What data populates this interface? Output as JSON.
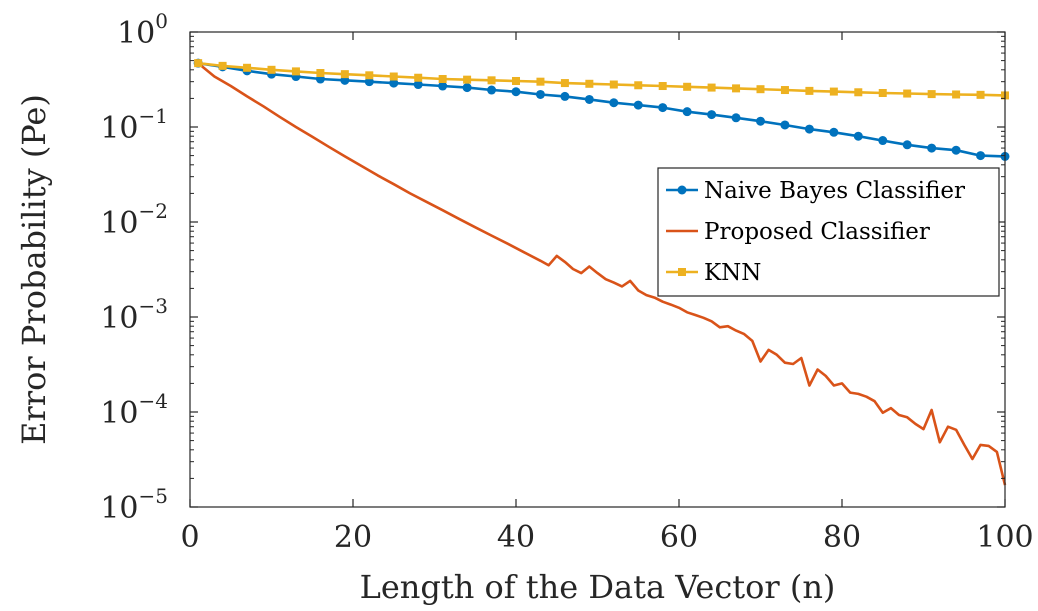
{
  "chart_data": {
    "type": "line",
    "title": "",
    "xlabel": "Length of the Data Vector (n)",
    "ylabel": "Error Probability (Pe)",
    "xlim": [
      0,
      100
    ],
    "ylim": [
      1e-05,
      1
    ],
    "yscale": "log",
    "x_ticks": [
      "0",
      "20",
      "40",
      "60",
      "80",
      "100"
    ],
    "y_ticks": [
      {
        "base": "10",
        "exp": "0"
      },
      {
        "base": "10",
        "exp": "−1"
      },
      {
        "base": "10",
        "exp": "−2"
      },
      {
        "base": "10",
        "exp": "−3"
      },
      {
        "base": "10",
        "exp": "−4"
      },
      {
        "base": "10",
        "exp": "−5"
      }
    ],
    "grid": false,
    "legend_position": "right",
    "series": [
      {
        "name": "Naive Bayes Classifier",
        "color": "#0072BD",
        "marker": "circle",
        "x": [
          1,
          4,
          7,
          10,
          13,
          16,
          19,
          22,
          25,
          28,
          31,
          34,
          37,
          40,
          43,
          46,
          49,
          52,
          55,
          58,
          61,
          64,
          67,
          70,
          73,
          76,
          79,
          82,
          85,
          88,
          91,
          94,
          97,
          100
        ],
        "values": [
          0.47,
          0.43,
          0.39,
          0.36,
          0.34,
          0.32,
          0.31,
          0.3,
          0.29,
          0.28,
          0.27,
          0.26,
          0.245,
          0.235,
          0.22,
          0.21,
          0.195,
          0.18,
          0.17,
          0.16,
          0.145,
          0.135,
          0.125,
          0.115,
          0.105,
          0.095,
          0.088,
          0.08,
          0.072,
          0.065,
          0.06,
          0.057,
          0.05,
          0.049
        ]
      },
      {
        "name": "Proposed Classifier",
        "color": "#D95319",
        "marker": "none",
        "x": [
          1,
          3,
          5,
          7,
          9,
          11,
          13,
          15,
          17,
          19,
          21,
          23,
          25,
          27,
          29,
          31,
          33,
          35,
          37,
          39,
          41,
          43,
          44,
          45,
          46,
          47,
          48,
          49,
          50,
          51,
          52,
          53,
          54,
          55,
          56,
          57,
          58,
          59,
          60,
          61,
          62,
          63,
          64,
          65,
          66,
          67,
          68,
          69,
          70,
          71,
          72,
          73,
          74,
          75,
          76,
          77,
          78,
          79,
          80,
          81,
          82,
          83,
          84,
          85,
          86,
          87,
          88,
          89,
          90,
          91,
          92,
          93,
          94,
          95,
          96,
          97,
          98,
          99,
          100
        ],
        "values": [
          0.47,
          0.34,
          0.27,
          0.21,
          0.165,
          0.128,
          0.1,
          0.079,
          0.062,
          0.049,
          0.039,
          0.031,
          0.025,
          0.02,
          0.0163,
          0.0133,
          0.0108,
          0.0088,
          0.0072,
          0.0059,
          0.0048,
          0.0039,
          0.0035,
          0.0044,
          0.0038,
          0.0032,
          0.0029,
          0.0034,
          0.0029,
          0.0025,
          0.0023,
          0.0021,
          0.0024,
          0.0019,
          0.0017,
          0.0016,
          0.00145,
          0.00135,
          0.00125,
          0.00112,
          0.00105,
          0.00098,
          0.0009,
          0.00078,
          0.0008,
          0.00072,
          0.00066,
          0.00056,
          0.00034,
          0.00045,
          0.0004,
          0.00033,
          0.00032,
          0.00037,
          0.00019,
          0.00028,
          0.00024,
          0.00019,
          0.0002,
          0.00016,
          0.000155,
          0.000145,
          0.00013,
          9.8e-05,
          0.00011,
          9.3e-05,
          8.8e-05,
          7.5e-05,
          6.6e-05,
          0.000105,
          4.8e-05,
          7e-05,
          6.5e-05,
          4.5e-05,
          3.2e-05,
          4.5e-05,
          4.4e-05,
          3.8e-05,
          1.7e-05
        ]
      },
      {
        "name": "KNN",
        "color": "#EDB120",
        "marker": "square",
        "x": [
          1,
          4,
          7,
          10,
          13,
          16,
          19,
          22,
          25,
          28,
          31,
          34,
          37,
          40,
          43,
          46,
          49,
          52,
          55,
          58,
          61,
          64,
          67,
          70,
          73,
          76,
          79,
          82,
          85,
          88,
          91,
          94,
          97,
          100
        ],
        "values": [
          0.47,
          0.44,
          0.42,
          0.4,
          0.385,
          0.37,
          0.36,
          0.35,
          0.34,
          0.33,
          0.32,
          0.315,
          0.31,
          0.305,
          0.3,
          0.29,
          0.285,
          0.28,
          0.275,
          0.27,
          0.265,
          0.26,
          0.255,
          0.25,
          0.245,
          0.24,
          0.236,
          0.232,
          0.228,
          0.225,
          0.222,
          0.22,
          0.218,
          0.215
        ]
      }
    ]
  }
}
